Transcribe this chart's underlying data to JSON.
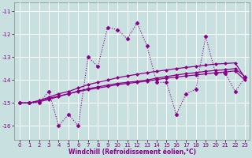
{
  "xlabel": "Windchill (Refroidissement éolien,°C)",
  "x": [
    0,
    1,
    2,
    3,
    4,
    5,
    6,
    7,
    8,
    9,
    10,
    11,
    12,
    13,
    14,
    15,
    16,
    17,
    18,
    19,
    20,
    21,
    22,
    23
  ],
  "y_main": [
    -15.0,
    -15.0,
    -15.0,
    -14.5,
    -16.0,
    -15.5,
    -16.0,
    -13.0,
    -13.4,
    -11.7,
    -11.8,
    -12.2,
    -11.5,
    -12.5,
    -14.1,
    -14.1,
    -15.5,
    -14.6,
    -14.4,
    -12.1,
    -13.7,
    -13.7,
    -14.5,
    -13.9
  ],
  "y_smooth1": [
    -15.0,
    -15.0,
    -14.9,
    -14.75,
    -14.6,
    -14.5,
    -14.35,
    -14.2,
    -14.1,
    -14.0,
    -13.9,
    -13.82,
    -13.75,
    -13.68,
    -13.62,
    -13.56,
    -13.5,
    -13.45,
    -13.4,
    -13.35,
    -13.3,
    -13.28,
    -13.25,
    -13.9
  ],
  "y_smooth2": [
    -15.0,
    -15.0,
    -14.95,
    -14.85,
    -14.72,
    -14.6,
    -14.48,
    -14.38,
    -14.3,
    -14.22,
    -14.15,
    -14.1,
    -14.05,
    -14.0,
    -13.92,
    -13.85,
    -13.78,
    -13.72,
    -13.68,
    -13.62,
    -13.58,
    -13.55,
    -13.5,
    -13.85
  ],
  "y_smooth3": [
    -15.0,
    -15.0,
    -14.9,
    -14.8,
    -14.7,
    -14.6,
    -14.5,
    -14.42,
    -14.35,
    -14.28,
    -14.2,
    -14.15,
    -14.1,
    -14.05,
    -13.98,
    -13.92,
    -13.87,
    -13.82,
    -13.78,
    -13.73,
    -13.68,
    -13.65,
    -13.6,
    -14.0
  ],
  "line_color": "#880088",
  "bg_color": "#c8e0e0",
  "grid_color": "#b0d0d0",
  "xlim": [
    -0.5,
    23.5
  ],
  "ylim": [
    -16.6,
    -10.6
  ],
  "yticks": [
    -16,
    -15,
    -14,
    -13,
    -12,
    -11
  ],
  "xticks": [
    0,
    1,
    2,
    3,
    4,
    5,
    6,
    7,
    8,
    9,
    10,
    11,
    12,
    13,
    14,
    15,
    16,
    17,
    18,
    19,
    20,
    21,
    22,
    23
  ]
}
